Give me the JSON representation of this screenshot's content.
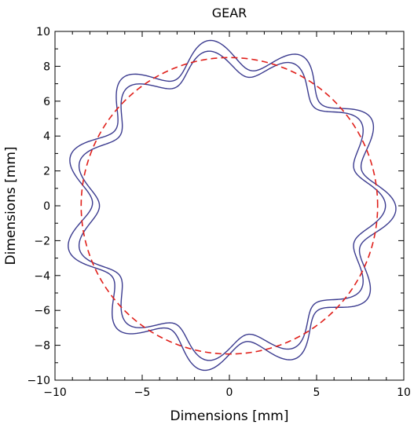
{
  "chart_data": {
    "type": "line",
    "title": "GEAR",
    "xlabel": "Dimensions [mm]",
    "ylabel": "Dimensions [mm]",
    "xlim": [
      -10,
      10
    ],
    "ylim": [
      -10,
      10
    ],
    "xticks": [
      -10,
      -5,
      0,
      5,
      10
    ],
    "yticks": [
      -10,
      -8,
      -6,
      -4,
      -2,
      0,
      2,
      4,
      6,
      8,
      10
    ],
    "xtick_labels": [
      "−10",
      "−5",
      "0",
      "5",
      "10"
    ],
    "ytick_labels": [
      "−10",
      "−8",
      "−6",
      "−4",
      "−2",
      "0",
      "2",
      "4",
      "6",
      "8",
      "10"
    ],
    "grid": false,
    "series": [
      {
        "style": "solid",
        "color": "#3b3b8f",
        "shape": "gear-profile-inner",
        "base_radius": 8.2,
        "teeth": 11,
        "amplitude": 0.75,
        "phase_deg": 0
      },
      {
        "style": "solid",
        "color": "#3b3b8f",
        "shape": "gear-profile-outer",
        "base_radius": 8.7,
        "teeth": 11,
        "amplitude": 0.85,
        "phase_deg": 12
      },
      {
        "style": "dashed",
        "color": "#e0201b",
        "shape": "circle",
        "center": [
          0,
          0
        ],
        "radius": 8.5
      }
    ]
  }
}
